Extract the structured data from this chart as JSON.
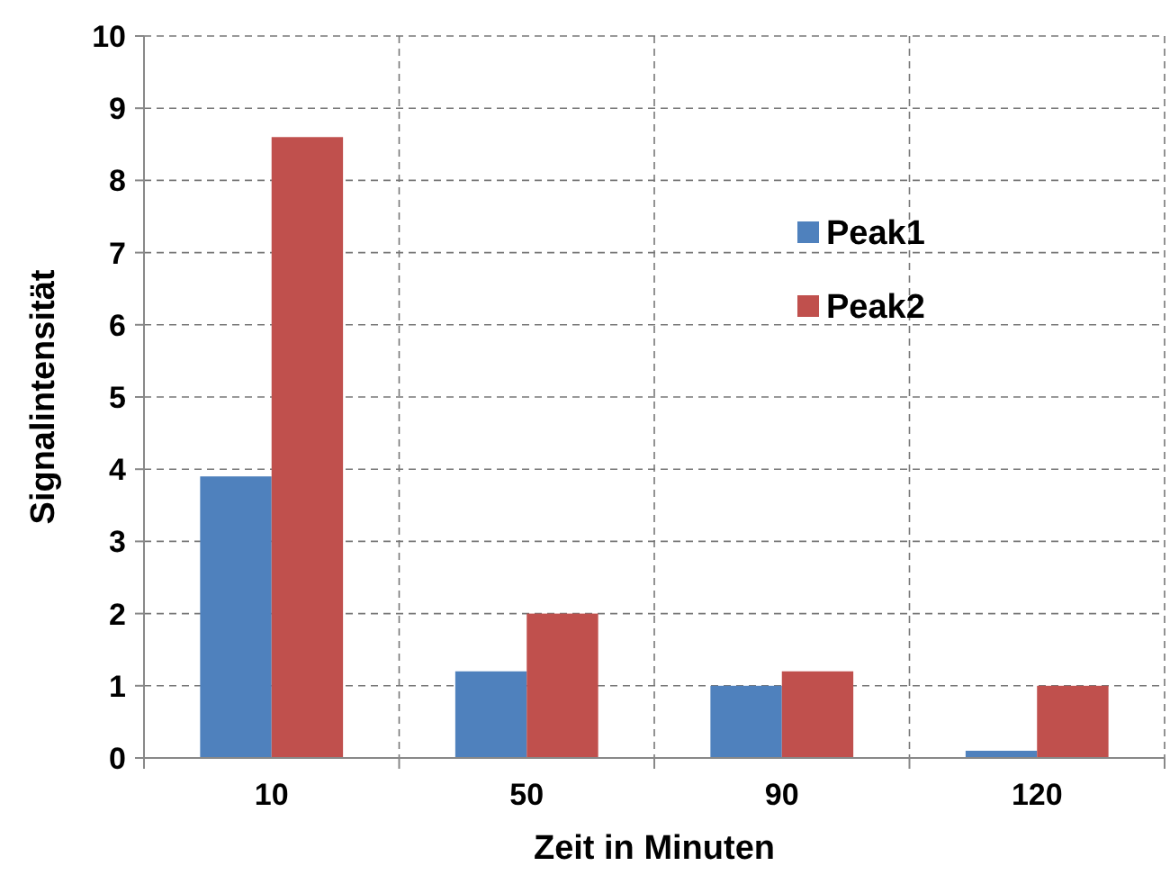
{
  "chart_data": {
    "type": "bar",
    "xlabel": "Zeit in Minuten",
    "ylabel": "Signalintensität",
    "categories": [
      "10",
      "50",
      "90",
      "120"
    ],
    "series": [
      {
        "name": "Peak1",
        "color": "#4f81bd",
        "values": [
          3.9,
          1.2,
          1.0,
          0.1
        ]
      },
      {
        "name": "Peak2",
        "color": "#c0504d",
        "values": [
          8.6,
          2.0,
          1.2,
          1.0
        ]
      }
    ],
    "ylim": [
      0,
      10
    ],
    "yticks": [
      0,
      1,
      2,
      3,
      4,
      5,
      6,
      7,
      8,
      9,
      10
    ],
    "grid": true,
    "legend": "top right"
  }
}
